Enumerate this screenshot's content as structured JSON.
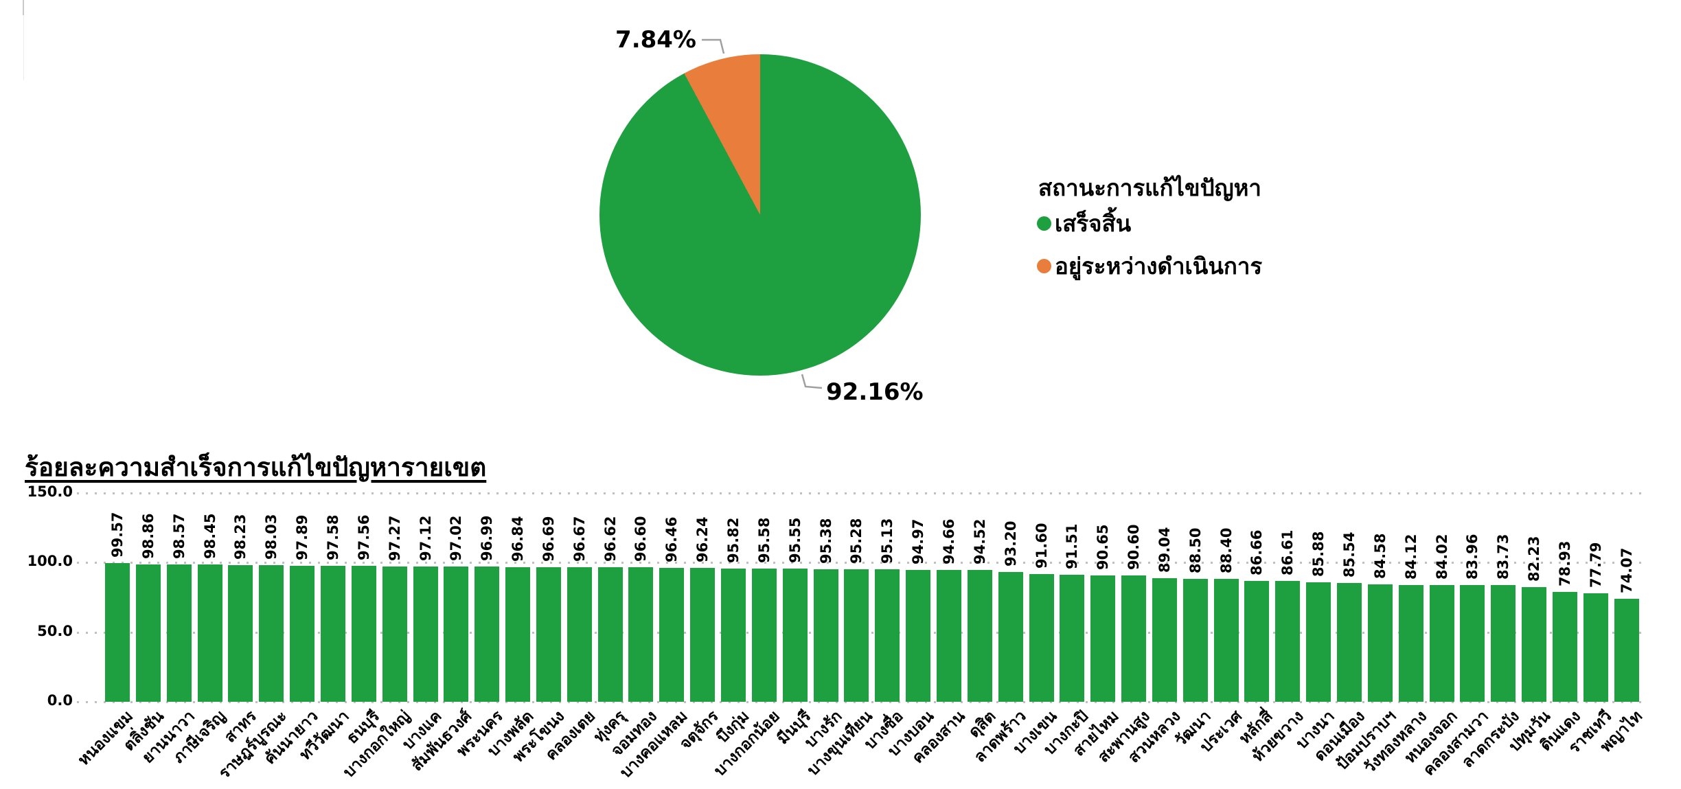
{
  "legend": {
    "title": "สถานะการแก้ไขปัญหา"
  },
  "chart_data": [
    {
      "type": "pie",
      "legend_title": "สถานะการแก้ไขปัญหา",
      "legend_position": "right",
      "start_angle_deg": 0,
      "direction": "clockwise",
      "slices": [
        {
          "label": "เสร็จสิ้น",
          "value": 92.16,
          "display": "92.16%",
          "color": "#1EA041"
        },
        {
          "label": "อยู่ระหว่างดำเนินการ",
          "value": 7.84,
          "display": "7.84%",
          "color": "#E87D3C"
        }
      ]
    },
    {
      "type": "bar",
      "title": "ร้อยละความสำเร็จการแก้ไขปัญหารายเขต",
      "xlabel": "",
      "ylabel": "",
      "ylim": [
        0,
        150
      ],
      "yticks": [
        0,
        50,
        100,
        150
      ],
      "ytick_labels": [
        "0.0",
        "50.0",
        "100.0",
        "150.0"
      ],
      "grid": "horizontal-dotted",
      "bar_color": "#1EA041",
      "categories": [
        "หนองแขม",
        "ตลิ่งชัน",
        "ยานนาวา",
        "ภาษีเจริญ",
        "สาทร",
        "ราษฎร์บูรณะ",
        "คันนายาว",
        "ทวีวัฒนา",
        "ธนบุรี",
        "บางกอกใหญ่",
        "บางแค",
        "สัมพันธวงศ์",
        "พระนคร",
        "บางพลัด",
        "พระโขนง",
        "คลองเตย",
        "ทุ่งครุ",
        "จอมทอง",
        "บางคอแหลม",
        "จตุจักร",
        "บึงกุ่ม",
        "บางกอกน้อย",
        "มีนบุรี",
        "บางรัก",
        "บางขุนเทียน",
        "บางซื่อ",
        "บางบอน",
        "คลองสาน",
        "ดุสิต",
        "ลาดพร้าว",
        "บางเขน",
        "บางกะปิ",
        "สายไหม",
        "สะพานสูง",
        "สวนหลวง",
        "วัฒนา",
        "ประเวศ",
        "หลักสี่",
        "ห้วยขวาง",
        "บางนา",
        "ดอนเมือง",
        "ป้อมปราบฯ",
        "วังทองหลาง",
        "หนองจอก",
        "คลองสามวา",
        "ลาดกระบัง",
        "ปทุมวัน",
        "ดินแดง",
        "ราชเทวี",
        "พญาไท"
      ],
      "values": [
        99.57,
        98.86,
        98.57,
        98.45,
        98.23,
        98.03,
        97.89,
        97.58,
        97.56,
        97.27,
        97.12,
        97.02,
        96.99,
        96.84,
        96.69,
        96.67,
        96.62,
        96.6,
        96.46,
        96.24,
        95.82,
        95.58,
        95.55,
        95.38,
        95.28,
        95.13,
        94.97,
        94.66,
        94.52,
        93.2,
        91.6,
        91.51,
        90.65,
        90.6,
        89.04,
        88.5,
        88.4,
        86.66,
        86.61,
        85.88,
        85.54,
        84.58,
        84.12,
        84.02,
        83.96,
        83.73,
        82.23,
        78.93,
        77.79,
        74.07
      ]
    }
  ]
}
